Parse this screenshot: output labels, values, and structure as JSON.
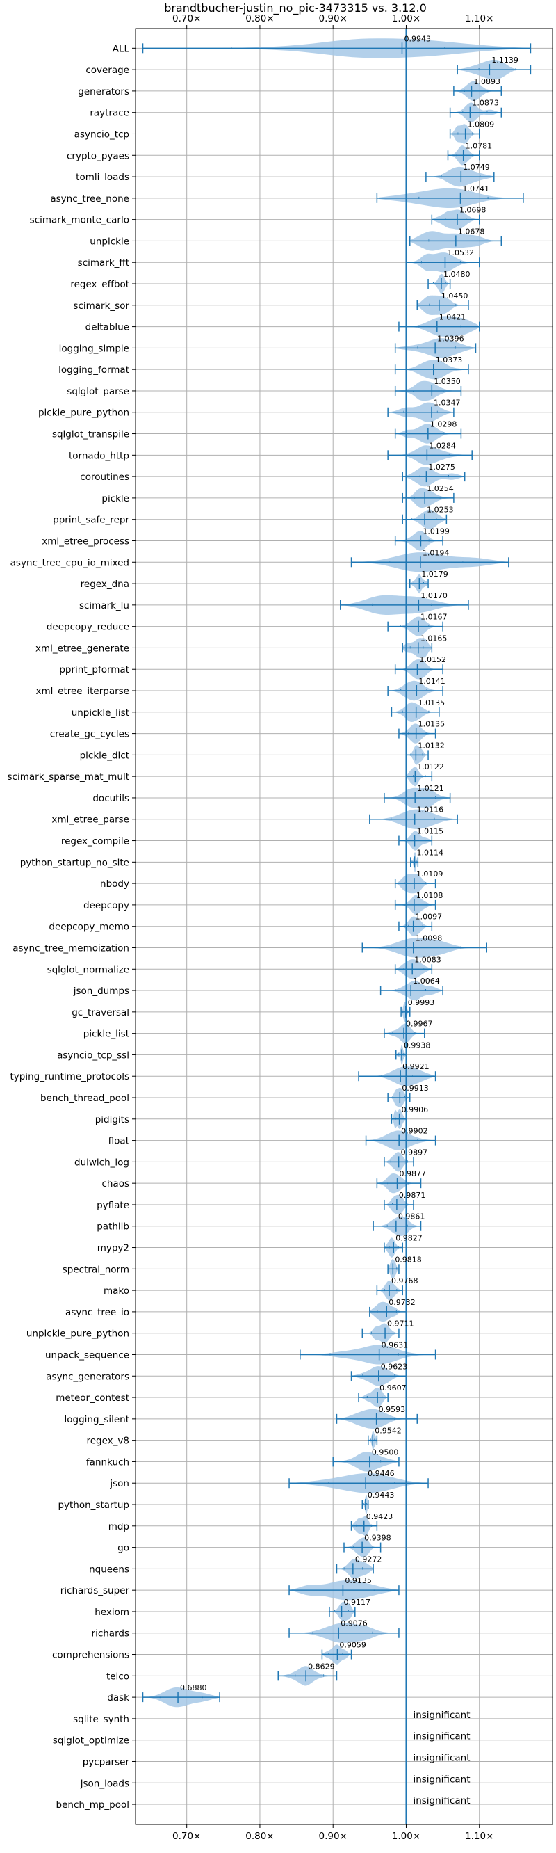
{
  "chart_data": {
    "type": "violin",
    "orientation": "horizontal",
    "title": "brandtbucher-justin_no_pic-3473315 vs. 3.12.0",
    "xlabel": "",
    "ylabel": "",
    "xlim": [
      0.63,
      1.2
    ],
    "xticks": [
      0.7,
      0.8,
      0.9,
      1.0,
      1.1
    ],
    "xtick_labels": [
      "0.70×",
      "0.80×",
      "0.90×",
      "1.00×",
      "1.10×"
    ],
    "xtick_position": "top-and-bottom",
    "reference_line": 1.0,
    "grid": true,
    "legend": "none",
    "colors": {
      "violin_fill": "#a6c8e6",
      "line": "#1f77b4",
      "grid": "#b0b0b0"
    },
    "insignificant_text": "insignificant",
    "items": [
      {
        "name": "ALL",
        "value": 0.9943,
        "value_label": "0.9943",
        "min": 0.64,
        "max": 1.17
      },
      {
        "name": "coverage",
        "value": 1.1139,
        "value_label": "1.1139",
        "min": 1.07,
        "max": 1.17
      },
      {
        "name": "generators",
        "value": 1.0893,
        "value_label": "1.0893",
        "min": 1.065,
        "max": 1.13
      },
      {
        "name": "raytrace",
        "value": 1.0873,
        "value_label": "1.0873",
        "min": 1.06,
        "max": 1.13
      },
      {
        "name": "asyncio_tcp",
        "value": 1.0809,
        "value_label": "1.0809",
        "min": 1.06,
        "max": 1.1
      },
      {
        "name": "crypto_pyaes",
        "value": 1.0781,
        "value_label": "1.0781",
        "min": 1.057,
        "max": 1.1
      },
      {
        "name": "tomli_loads",
        "value": 1.0749,
        "value_label": "1.0749",
        "min": 1.027,
        "max": 1.12
      },
      {
        "name": "async_tree_none",
        "value": 1.0741,
        "value_label": "1.0741",
        "min": 0.96,
        "max": 1.16
      },
      {
        "name": "scimark_monte_carlo",
        "value": 1.0698,
        "value_label": "1.0698",
        "min": 1.035,
        "max": 1.1
      },
      {
        "name": "unpickle",
        "value": 1.0678,
        "value_label": "1.0678",
        "min": 1.005,
        "max": 1.13
      },
      {
        "name": "scimark_fft",
        "value": 1.0532,
        "value_label": "1.0532",
        "min": 1.0,
        "max": 1.1
      },
      {
        "name": "regex_effbot",
        "value": 1.048,
        "value_label": "1.0480",
        "min": 1.03,
        "max": 1.06
      },
      {
        "name": "scimark_sor",
        "value": 1.045,
        "value_label": "1.0450",
        "min": 1.015,
        "max": 1.085
      },
      {
        "name": "deltablue",
        "value": 1.0421,
        "value_label": "1.0421",
        "min": 0.99,
        "max": 1.1
      },
      {
        "name": "logging_simple",
        "value": 1.0396,
        "value_label": "1.0396",
        "min": 0.985,
        "max": 1.095
      },
      {
        "name": "logging_format",
        "value": 1.0373,
        "value_label": "1.0373",
        "min": 0.985,
        "max": 1.085
      },
      {
        "name": "sqlglot_parse",
        "value": 1.035,
        "value_label": "1.0350",
        "min": 0.985,
        "max": 1.075
      },
      {
        "name": "pickle_pure_python",
        "value": 1.0347,
        "value_label": "1.0347",
        "min": 0.975,
        "max": 1.065
      },
      {
        "name": "sqlglot_transpile",
        "value": 1.0298,
        "value_label": "1.0298",
        "min": 0.985,
        "max": 1.075
      },
      {
        "name": "tornado_http",
        "value": 1.0284,
        "value_label": "1.0284",
        "min": 0.975,
        "max": 1.09
      },
      {
        "name": "coroutines",
        "value": 1.0275,
        "value_label": "1.0275",
        "min": 0.995,
        "max": 1.08
      },
      {
        "name": "pickle",
        "value": 1.0254,
        "value_label": "1.0254",
        "min": 0.995,
        "max": 1.065
      },
      {
        "name": "pprint_safe_repr",
        "value": 1.0253,
        "value_label": "1.0253",
        "min": 0.995,
        "max": 1.055
      },
      {
        "name": "xml_etree_process",
        "value": 1.0199,
        "value_label": "1.0199",
        "min": 0.985,
        "max": 1.05
      },
      {
        "name": "async_tree_cpu_io_mixed",
        "value": 1.0194,
        "value_label": "1.0194",
        "min": 0.925,
        "max": 1.14
      },
      {
        "name": "regex_dna",
        "value": 1.0179,
        "value_label": "1.0179",
        "min": 1.005,
        "max": 1.03
      },
      {
        "name": "scimark_lu",
        "value": 1.017,
        "value_label": "1.0170",
        "min": 0.91,
        "max": 1.085
      },
      {
        "name": "deepcopy_reduce",
        "value": 1.0167,
        "value_label": "1.0167",
        "min": 0.975,
        "max": 1.05
      },
      {
        "name": "xml_etree_generate",
        "value": 1.0165,
        "value_label": "1.0165",
        "min": 0.995,
        "max": 1.035
      },
      {
        "name": "pprint_pformat",
        "value": 1.0152,
        "value_label": "1.0152",
        "min": 0.985,
        "max": 1.05
      },
      {
        "name": "xml_etree_iterparse",
        "value": 1.0141,
        "value_label": "1.0141",
        "min": 0.975,
        "max": 1.05
      },
      {
        "name": "unpickle_list",
        "value": 1.0135,
        "value_label": "1.0135",
        "min": 0.98,
        "max": 1.045
      },
      {
        "name": "create_gc_cycles",
        "value": 1.0135,
        "value_label": "1.0135",
        "min": 0.99,
        "max": 1.04
      },
      {
        "name": "pickle_dict",
        "value": 1.0132,
        "value_label": "1.0132",
        "min": 1.0,
        "max": 1.03
      },
      {
        "name": "scimark_sparse_mat_mult",
        "value": 1.0122,
        "value_label": "1.0122",
        "min": 1.0,
        "max": 1.035
      },
      {
        "name": "docutils",
        "value": 1.0121,
        "value_label": "1.0121",
        "min": 0.97,
        "max": 1.06
      },
      {
        "name": "xml_etree_parse",
        "value": 1.0116,
        "value_label": "1.0116",
        "min": 0.95,
        "max": 1.07
      },
      {
        "name": "regex_compile",
        "value": 1.0115,
        "value_label": "1.0115",
        "min": 0.99,
        "max": 1.035
      },
      {
        "name": "python_startup_no_site",
        "value": 1.0114,
        "value_label": "1.0114",
        "min": 1.006,
        "max": 1.016
      },
      {
        "name": "nbody",
        "value": 1.0109,
        "value_label": "1.0109",
        "min": 0.985,
        "max": 1.04
      },
      {
        "name": "deepcopy",
        "value": 1.0108,
        "value_label": "1.0108",
        "min": 0.985,
        "max": 1.04
      },
      {
        "name": "deepcopy_memo",
        "value": 1.0097,
        "value_label": "1.0097",
        "min": 0.99,
        "max": 1.035
      },
      {
        "name": "async_tree_memoization",
        "value": 1.0098,
        "value_label": "1.0098",
        "min": 0.94,
        "max": 1.11
      },
      {
        "name": "sqlglot_normalize",
        "value": 1.0083,
        "value_label": "1.0083",
        "min": 0.985,
        "max": 1.035
      },
      {
        "name": "json_dumps",
        "value": 1.0064,
        "value_label": "1.0064",
        "min": 0.965,
        "max": 1.05
      },
      {
        "name": "gc_traversal",
        "value": 0.9993,
        "value_label": "0.9993",
        "min": 0.993,
        "max": 1.005
      },
      {
        "name": "pickle_list",
        "value": 0.9967,
        "value_label": "0.9967",
        "min": 0.97,
        "max": 1.025
      },
      {
        "name": "asyncio_tcp_ssl",
        "value": 0.9938,
        "value_label": "0.9938",
        "min": 0.986,
        "max": 1.0
      },
      {
        "name": "typing_runtime_protocols",
        "value": 0.9921,
        "value_label": "0.9921",
        "min": 0.935,
        "max": 1.04
      },
      {
        "name": "bench_thread_pool",
        "value": 0.9913,
        "value_label": "0.9913",
        "min": 0.975,
        "max": 1.005
      },
      {
        "name": "pidigits",
        "value": 0.9906,
        "value_label": "0.9906",
        "min": 0.98,
        "max": 1.0
      },
      {
        "name": "float",
        "value": 0.9902,
        "value_label": "0.9902",
        "min": 0.945,
        "max": 1.04
      },
      {
        "name": "dulwich_log",
        "value": 0.9897,
        "value_label": "0.9897",
        "min": 0.97,
        "max": 1.01
      },
      {
        "name": "chaos",
        "value": 0.9877,
        "value_label": "0.9877",
        "min": 0.96,
        "max": 1.02
      },
      {
        "name": "pyflate",
        "value": 0.9871,
        "value_label": "0.9871",
        "min": 0.97,
        "max": 1.01
      },
      {
        "name": "pathlib",
        "value": 0.9861,
        "value_label": "0.9861",
        "min": 0.955,
        "max": 1.02
      },
      {
        "name": "mypy2",
        "value": 0.9827,
        "value_label": "0.9827",
        "min": 0.97,
        "max": 0.995
      },
      {
        "name": "spectral_norm",
        "value": 0.9818,
        "value_label": "0.9818",
        "min": 0.975,
        "max": 0.99
      },
      {
        "name": "mako",
        "value": 0.9768,
        "value_label": "0.9768",
        "min": 0.96,
        "max": 0.995
      },
      {
        "name": "async_tree_io",
        "value": 0.9732,
        "value_label": "0.9732",
        "min": 0.95,
        "max": 1.0
      },
      {
        "name": "unpickle_pure_python",
        "value": 0.9711,
        "value_label": "0.9711",
        "min": 0.94,
        "max": 0.99
      },
      {
        "name": "unpack_sequence",
        "value": 0.9631,
        "value_label": "0.9631",
        "min": 0.855,
        "max": 1.04
      },
      {
        "name": "async_generators",
        "value": 0.9623,
        "value_label": "0.9623",
        "min": 0.925,
        "max": 1.0
      },
      {
        "name": "meteor_contest",
        "value": 0.9607,
        "value_label": "0.9607",
        "min": 0.935,
        "max": 0.975
      },
      {
        "name": "logging_silent",
        "value": 0.9593,
        "value_label": "0.9593",
        "min": 0.905,
        "max": 1.015
      },
      {
        "name": "regex_v8",
        "value": 0.9542,
        "value_label": "0.9542",
        "min": 0.948,
        "max": 0.96
      },
      {
        "name": "fannkuch",
        "value": 0.95,
        "value_label": "0.9500",
        "min": 0.9,
        "max": 0.99
      },
      {
        "name": "json",
        "value": 0.9446,
        "value_label": "0.9446",
        "min": 0.84,
        "max": 1.03
      },
      {
        "name": "python_startup",
        "value": 0.9443,
        "value_label": "0.9443",
        "min": 0.94,
        "max": 0.948
      },
      {
        "name": "mdp",
        "value": 0.9423,
        "value_label": "0.9423",
        "min": 0.925,
        "max": 0.96
      },
      {
        "name": "go",
        "value": 0.9398,
        "value_label": "0.9398",
        "min": 0.915,
        "max": 0.965
      },
      {
        "name": "nqueens",
        "value": 0.9272,
        "value_label": "0.9272",
        "min": 0.905,
        "max": 0.955
      },
      {
        "name": "richards_super",
        "value": 0.9135,
        "value_label": "0.9135",
        "min": 0.84,
        "max": 0.99
      },
      {
        "name": "hexiom",
        "value": 0.9117,
        "value_label": "0.9117",
        "min": 0.895,
        "max": 0.93
      },
      {
        "name": "richards",
        "value": 0.9076,
        "value_label": "0.9076",
        "min": 0.84,
        "max": 0.99
      },
      {
        "name": "comprehensions",
        "value": 0.9059,
        "value_label": "0.9059",
        "min": 0.885,
        "max": 0.925
      },
      {
        "name": "telco",
        "value": 0.8629,
        "value_label": "0.8629",
        "min": 0.825,
        "max": 0.905
      },
      {
        "name": "dask",
        "value": 0.688,
        "value_label": "0.6880",
        "min": 0.64,
        "max": 0.745
      },
      {
        "name": "sqlite_synth",
        "insignificant": true
      },
      {
        "name": "sqlglot_optimize",
        "insignificant": true
      },
      {
        "name": "pycparser",
        "insignificant": true
      },
      {
        "name": "json_loads",
        "insignificant": true
      },
      {
        "name": "bench_mp_pool",
        "insignificant": true
      }
    ]
  }
}
